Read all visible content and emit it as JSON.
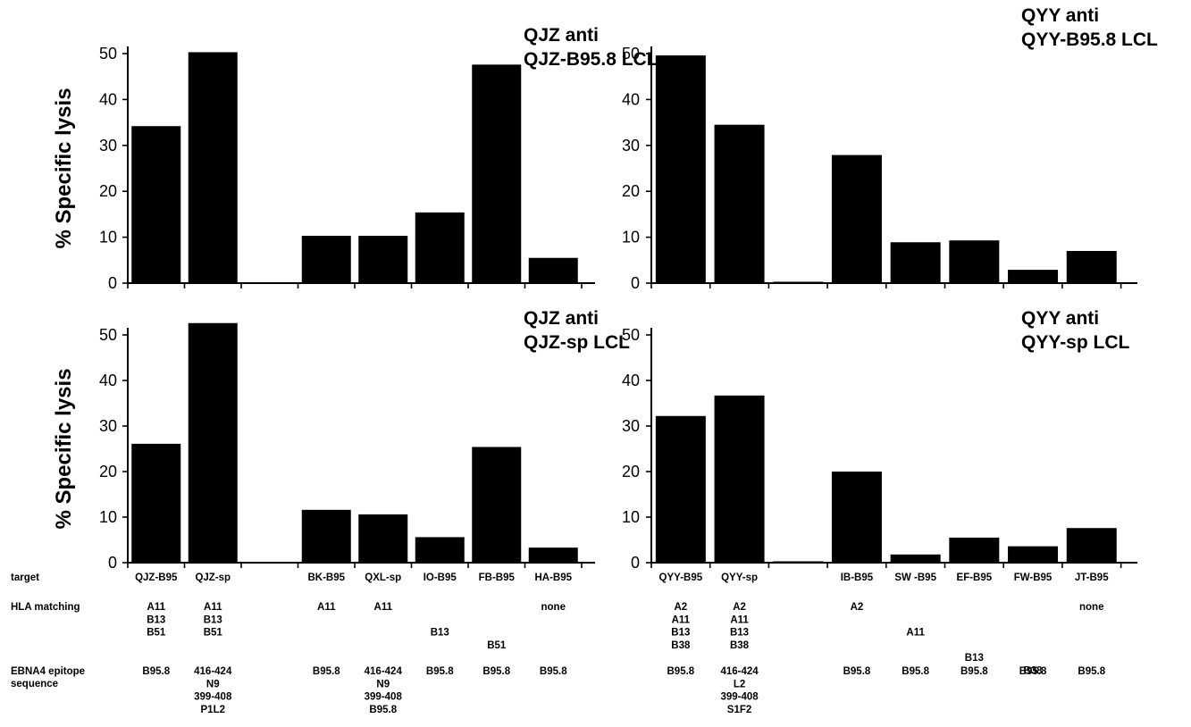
{
  "row_headers": {
    "target": "target",
    "hla": "HLA matching",
    "ebna_line1": "EBNA4 epitope",
    "ebna_line2": "sequence"
  },
  "ylabel_text": "% Specific lysis",
  "chart_data": [
    {
      "type": "bar",
      "title_line1": "QJZ anti",
      "title_line2": "QJZ-B95.8 LCL",
      "ylabel": "% Specific lysis",
      "ylim": [
        0,
        50
      ],
      "yticks": [
        "0",
        "10",
        "20",
        "30",
        "40",
        "50"
      ],
      "categories": [
        "QJZ-B95",
        "QJZ-sp",
        "",
        "BK-B95",
        "QXL-sp",
        "IO-B95",
        "FB-B95",
        "HA-B95"
      ],
      "values": [
        34.2,
        50.3,
        0,
        10.3,
        10.3,
        15.4,
        47.6,
        5.5
      ]
    },
    {
      "type": "bar",
      "title_line1": "QYY anti",
      "title_line2": "QYY-B95.8 LCL",
      "ylabel": "",
      "ylim": [
        0,
        50
      ],
      "yticks": [
        "0",
        "10",
        "20",
        "30",
        "40",
        "50"
      ],
      "categories": [
        "QYY-B95",
        "QYY-sp",
        "",
        "IB-B95",
        "SW -B95",
        "EF-B95",
        "FW-B95",
        "JT-B95"
      ],
      "values": [
        49.6,
        34.5,
        0.3,
        27.9,
        8.9,
        9.3,
        2.9,
        7.0
      ]
    },
    {
      "type": "bar",
      "title_line1": "QJZ anti",
      "title_line2": "QJZ-sp LCL",
      "ylabel": "% Specific lysis",
      "ylim": [
        0,
        50
      ],
      "yticks": [
        "0",
        "10",
        "20",
        "30",
        "40",
        "50"
      ],
      "categories": [
        "QJZ-B95",
        "QJZ-sp",
        "",
        "BK-B95",
        "QXL-sp",
        "IO-B95",
        "FB-B95",
        "HA-B95"
      ],
      "values": [
        26.1,
        52.6,
        0,
        11.6,
        10.6,
        5.6,
        25.4,
        3.3
      ]
    },
    {
      "type": "bar",
      "title_line1": "QYY anti",
      "title_line2": "QYY-sp LCL",
      "ylabel": "",
      "ylim": [
        0,
        50
      ],
      "yticks": [
        "0",
        "10",
        "20",
        "30",
        "40",
        "50"
      ],
      "categories": [
        "QYY-B95",
        "QYY-sp",
        "",
        "IB-B95",
        "SW -B95",
        "EF-B95",
        "FW-B95",
        "JT-B95"
      ],
      "values": [
        32.2,
        36.7,
        0.3,
        20.0,
        1.8,
        5.5,
        3.6,
        7.6
      ]
    }
  ],
  "table": {
    "left": {
      "targets": [
        "QJZ-B95",
        "QJZ-sp",
        "",
        "BK-B95",
        "QXL-sp",
        "IO-B95",
        "FB-B95",
        "HA-B95"
      ],
      "hla": [
        [
          "A11",
          "B13",
          "B51"
        ],
        [
          "A11",
          "B13",
          "B51"
        ],
        [],
        [
          "A11"
        ],
        [
          "A11"
        ],
        [
          "",
          "",
          "B13"
        ],
        [
          "",
          "",
          "",
          "B51"
        ],
        [
          "none"
        ]
      ],
      "ebna": [
        [
          "B95.8"
        ],
        [
          "416-424",
          "N9",
          "399-408",
          "P1L2"
        ],
        [],
        [
          "B95.8"
        ],
        [
          "416-424",
          "N9",
          "399-408",
          "B95.8"
        ],
        [
          "B95.8"
        ],
        [
          "B95.8"
        ],
        [
          "B95.8"
        ]
      ]
    },
    "right": {
      "targets": [
        "QYY-B95",
        "QYY-sp",
        "",
        "IB-B95",
        "SW -B95",
        "EF-B95",
        "FW-B95",
        "JT-B95"
      ],
      "hla": [
        [
          "A2",
          "A11",
          "B13",
          "B38"
        ],
        [
          "A2",
          "A11",
          "B13",
          "B38"
        ],
        [],
        [
          "A2"
        ],
        [
          "",
          "",
          "A11"
        ],
        [
          "",
          "",
          "",
          "",
          "B13"
        ],
        [
          "",
          "",
          "",
          "",
          "",
          "B38"
        ],
        [
          "none"
        ]
      ],
      "ebna": [
        [
          "B95.8"
        ],
        [
          "416-424",
          "L2",
          "399-408",
          "S1F2"
        ],
        [],
        [
          "B95.8"
        ],
        [
          "B95.8"
        ],
        [
          "B95.8"
        ],
        [
          "B95.8"
        ],
        [
          "B95.8"
        ]
      ]
    }
  }
}
